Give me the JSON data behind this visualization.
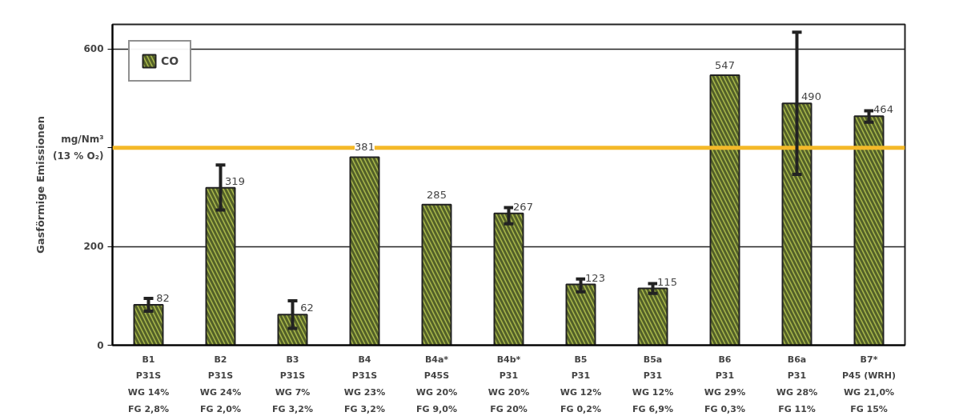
{
  "chart_data": {
    "type": "bar",
    "ylabel": "Gasförmige Emissionen",
    "categories": [
      "B1\nP31S\nWG 14%\nFG 2,8%",
      "B2\nP31S\nWG 24%\nFG 2,0%",
      "B3\nP31S\nWG 7%\nFG 3,2%",
      "B4\nP31S\nWG 23%\nFG 3,2%",
      "B4a*\nP45S\nWG 20%\nFG 9,0%",
      "B4b*\nP31\nWG 20%\nFG 20%",
      "B5\nP31\nWG 12%\nFG 0,2%",
      "B5a\nP31\nWG 12%\nFG 6,9%",
      "B6\nP31\nWG 29%\nFG 0,3%",
      "B6a\nP31\nWG 28%\nFG 11%",
      "B7*\nP45 (WRH)\nWG 21,0%\nFG 15%"
    ],
    "series": [
      {
        "name": "CO",
        "color": "#a9b84a",
        "values": [
          82,
          319,
          62,
          381,
          285,
          267,
          123,
          115,
          547,
          490,
          464
        ],
        "errors": [
          [
            69,
            95
          ],
          [
            274,
            365
          ],
          [
            34,
            90
          ],
          null,
          null,
          [
            246,
            279
          ],
          [
            108,
            134
          ],
          [
            105,
            125
          ],
          null,
          [
            346,
            634
          ],
          [
            452,
            475
          ]
        ]
      }
    ],
    "ylim": [
      0,
      650
    ],
    "yticks": [
      0,
      200,
      {
        "value": 400,
        "label": null
      },
      600
    ],
    "grid": "y",
    "legend": "top left",
    "data_labels": true,
    "ref_lines": [
      {
        "axis": "y",
        "value": 400,
        "label": "mg/Nm³\n(13 % O₂)",
        "color": "#f4b929"
      }
    ]
  }
}
